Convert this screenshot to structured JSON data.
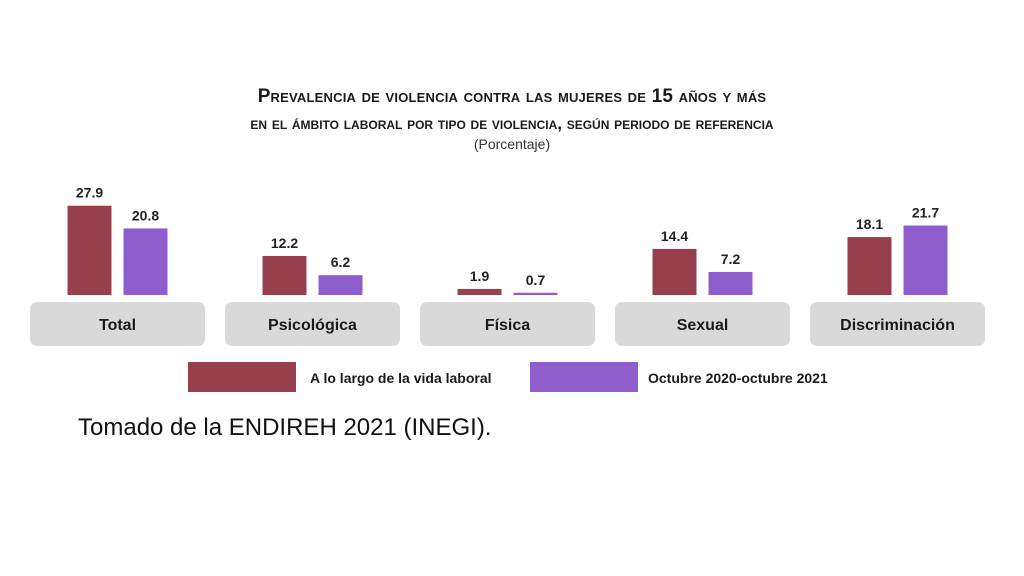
{
  "chart_data": {
    "type": "bar",
    "title_line1": "Prevalencia de violencia contra las mujeres de 15 años y más",
    "title_line2": "en el ámbito laboral por tipo de violencia, según periodo de referencia",
    "subtitle": "(Porcentaje)",
    "categories": [
      "Total",
      "Psicológica",
      "Física",
      "Sexual",
      "Discriminación"
    ],
    "series": [
      {
        "name": "A lo largo de la vida laboral",
        "color": "#96404e",
        "values": [
          27.9,
          12.2,
          1.9,
          14.4,
          18.1
        ]
      },
      {
        "name": "Octubre 2020-octubre 2021",
        "color": "#8e5fcc",
        "values": [
          20.8,
          6.2,
          0.7,
          7.2,
          21.7
        ]
      }
    ],
    "value_labels": [
      [
        "27.9",
        "12.2",
        "1.9",
        "14.4",
        "18.1"
      ],
      [
        "20.8",
        "6.2",
        "0.7",
        "7.2",
        "21.7"
      ]
    ],
    "legend_position": "bottom",
    "grid": false
  },
  "source_note": "Tomado de la ENDIREH 2021 (INEGI)."
}
